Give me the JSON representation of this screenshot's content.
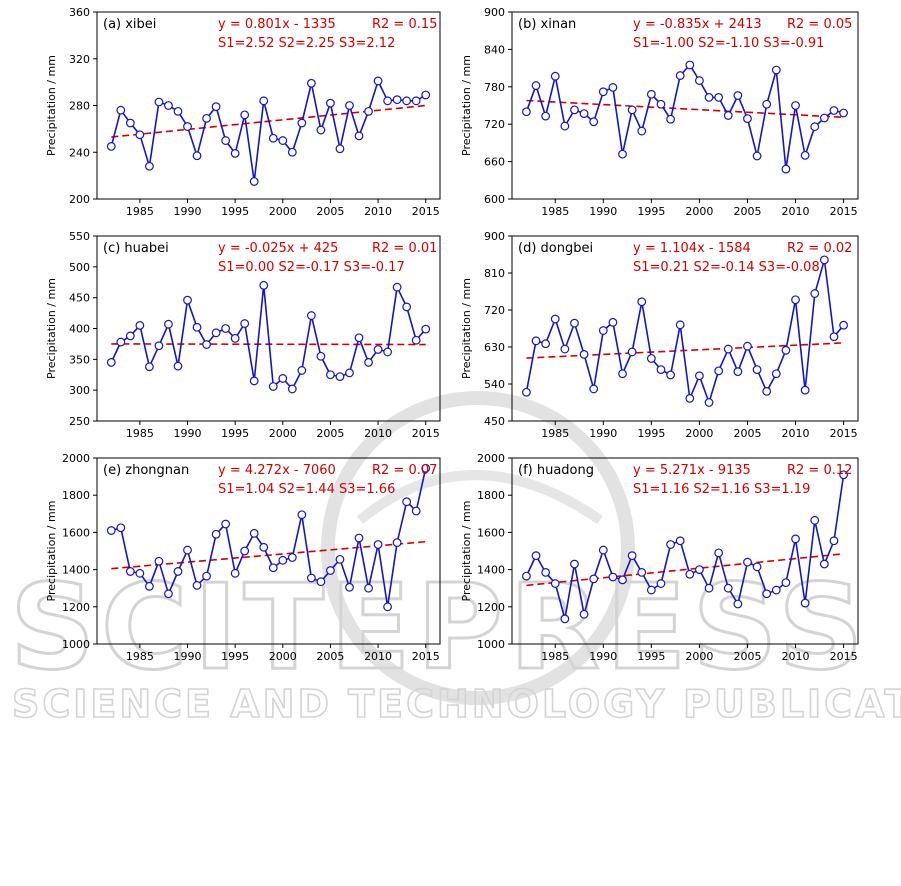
{
  "chart_data": [
    {
      "type": "line",
      "title": "(a) xibei",
      "equation": "y = 0.801x - 1335",
      "r2": "R2 = 0.15",
      "stats": "S1=2.52  S2=2.25  S3=2.12",
      "ylabel": "Precipitation / mm",
      "ylim": [
        200,
        360
      ],
      "yticks": [
        200,
        240,
        280,
        320,
        360
      ],
      "xlim": [
        1980.5,
        2016.5
      ],
      "xticks": [
        1985,
        1990,
        1995,
        2000,
        2005,
        2010,
        2015
      ],
      "years": [
        1982,
        1983,
        1984,
        1985,
        1986,
        1987,
        1988,
        1989,
        1990,
        1991,
        1992,
        1993,
        1994,
        1995,
        1996,
        1997,
        1998,
        1999,
        2000,
        2001,
        2002,
        2003,
        2004,
        2005,
        2006,
        2007,
        2008,
        2009,
        2010,
        2011,
        2012,
        2013,
        2014,
        2015
      ],
      "values": [
        245,
        276,
        265,
        255,
        228,
        283,
        280,
        275,
        262,
        237,
        269,
        279,
        250,
        239,
        272,
        215,
        284,
        252,
        250,
        240,
        265,
        299,
        259,
        282,
        243,
        280,
        254,
        275,
        301,
        284,
        285,
        284,
        284,
        289
      ],
      "trend": [
        253,
        280
      ]
    },
    {
      "type": "line",
      "title": "(b) xinan",
      "equation": "y = -0.835x + 2413",
      "r2": "R2 = 0.05",
      "stats": "S1=-1.00  S2=-1.10  S3=-0.91",
      "ylabel": "Precipitation / mm",
      "ylim": [
        600,
        900
      ],
      "yticks": [
        600,
        660,
        720,
        780,
        840,
        900
      ],
      "xlim": [
        1980.5,
        2016.5
      ],
      "xticks": [
        1985,
        1990,
        1995,
        2000,
        2005,
        2010,
        2015
      ],
      "years": [
        1982,
        1983,
        1984,
        1985,
        1986,
        1987,
        1988,
        1989,
        1990,
        1991,
        1992,
        1993,
        1994,
        1995,
        1996,
        1997,
        1998,
        1999,
        2000,
        2001,
        2002,
        2003,
        2004,
        2005,
        2006,
        2007,
        2008,
        2009,
        2010,
        2011,
        2012,
        2013,
        2014,
        2015
      ],
      "values": [
        740,
        782,
        733,
        797,
        717,
        743,
        737,
        724,
        772,
        779,
        672,
        743,
        709,
        768,
        752,
        728,
        798,
        815,
        790,
        763,
        763,
        734,
        766,
        729,
        669,
        752,
        807,
        648,
        750,
        670,
        716,
        730,
        742,
        738
      ],
      "trend": [
        758,
        731
      ]
    },
    {
      "type": "line",
      "title": "(c) huabei",
      "equation": "y = -0.025x + 425",
      "r2": "R2 = 0.01",
      "stats": "S1=0.00  S2=-0.17  S3=-0.17",
      "ylabel": "Precipitation / mm",
      "ylim": [
        250,
        550
      ],
      "yticks": [
        250,
        300,
        350,
        400,
        450,
        500,
        550
      ],
      "xlim": [
        1980.5,
        2016.5
      ],
      "xticks": [
        1985,
        1990,
        1995,
        2000,
        2005,
        2010,
        2015
      ],
      "years": [
        1982,
        1983,
        1984,
        1985,
        1986,
        1987,
        1988,
        1989,
        1990,
        1991,
        1992,
        1993,
        1994,
        1995,
        1996,
        1997,
        1998,
        1999,
        2000,
        2001,
        2002,
        2003,
        2004,
        2005,
        2006,
        2007,
        2008,
        2009,
        2010,
        2011,
        2012,
        2013,
        2014,
        2015
      ],
      "values": [
        345,
        378,
        388,
        405,
        338,
        372,
        407,
        339,
        446,
        402,
        374,
        393,
        400,
        384,
        408,
        315,
        470,
        306,
        319,
        302,
        332,
        421,
        355,
        325,
        322,
        328,
        385,
        345,
        366,
        362,
        467,
        435,
        381,
        399
      ],
      "trend": [
        375,
        374
      ]
    },
    {
      "type": "line",
      "title": "(d) dongbei",
      "equation": "y = 1.104x - 1584",
      "r2": "R2 = 0.02",
      "stats": "S1=0.21  S2=-0.14  S3=-0.08",
      "ylabel": "Precipitation / mm",
      "ylim": [
        450,
        900
      ],
      "yticks": [
        450,
        540,
        630,
        720,
        810,
        900
      ],
      "xlim": [
        1980.5,
        2016.5
      ],
      "xticks": [
        1985,
        1990,
        1995,
        2000,
        2005,
        2010,
        2015
      ],
      "years": [
        1982,
        1983,
        1984,
        1985,
        1986,
        1987,
        1988,
        1989,
        1990,
        1991,
        1992,
        1993,
        1994,
        1995,
        1996,
        1997,
        1998,
        1999,
        2000,
        2001,
        2002,
        2003,
        2004,
        2005,
        2006,
        2007,
        2008,
        2009,
        2010,
        2011,
        2012,
        2013,
        2014,
        2015
      ],
      "values": [
        520,
        645,
        638,
        698,
        625,
        688,
        612,
        528,
        670,
        690,
        565,
        618,
        740,
        602,
        575,
        562,
        684,
        505,
        560,
        495,
        572,
        625,
        570,
        632,
        575,
        522,
        565,
        622,
        745,
        525,
        760,
        842,
        655,
        683
      ],
      "trend": [
        603,
        640
      ]
    },
    {
      "type": "line",
      "title": "(e) zhongnan",
      "equation": "y = 4.272x - 7060",
      "r2": "R2 = 0.07",
      "stats": "S1=1.04  S2=1.44  S3=1.66",
      "ylabel": "Precipitation / mm",
      "ylim": [
        1000,
        2000
      ],
      "yticks": [
        1000,
        1200,
        1400,
        1600,
        1800,
        2000
      ],
      "xlim": [
        1980.5,
        2016.5
      ],
      "xticks": [
        1985,
        1990,
        1995,
        2000,
        2005,
        2010,
        2015
      ],
      "years": [
        1982,
        1983,
        1984,
        1985,
        1986,
        1987,
        1988,
        1989,
        1990,
        1991,
        1992,
        1993,
        1994,
        1995,
        1996,
        1997,
        1998,
        1999,
        2000,
        2001,
        2002,
        2003,
        2004,
        2005,
        2006,
        2007,
        2008,
        2009,
        2010,
        2011,
        2012,
        2013,
        2014,
        2015
      ],
      "values": [
        1610,
        1625,
        1390,
        1380,
        1310,
        1445,
        1270,
        1390,
        1505,
        1315,
        1365,
        1590,
        1645,
        1380,
        1500,
        1595,
        1520,
        1410,
        1450,
        1465,
        1695,
        1355,
        1335,
        1395,
        1455,
        1305,
        1570,
        1300,
        1535,
        1200,
        1545,
        1765,
        1715,
        1945
      ],
      "trend": [
        1405,
        1550
      ]
    },
    {
      "type": "line",
      "title": "(f) huadong",
      "equation": "y = 5.271x - 9135",
      "r2": "R2 = 0.12",
      "stats": "S1=1.16  S2=1.16  S3=1.19",
      "ylabel": "Precipitation / mm",
      "ylim": [
        1000,
        2000
      ],
      "yticks": [
        1000,
        1200,
        1400,
        1600,
        1800,
        2000
      ],
      "xlim": [
        1980.5,
        2016.5
      ],
      "xticks": [
        1985,
        1990,
        1995,
        2000,
        2005,
        2010,
        2015
      ],
      "years": [
        1982,
        1983,
        1984,
        1985,
        1986,
        1987,
        1988,
        1989,
        1990,
        1991,
        1992,
        1993,
        1994,
        1995,
        1996,
        1997,
        1998,
        1999,
        2000,
        2001,
        2002,
        2003,
        2004,
        2005,
        2006,
        2007,
        2008,
        2009,
        2010,
        2011,
        2012,
        2013,
        2014,
        2015
      ],
      "values": [
        1365,
        1475,
        1385,
        1325,
        1135,
        1430,
        1160,
        1350,
        1505,
        1360,
        1345,
        1475,
        1385,
        1290,
        1325,
        1535,
        1555,
        1375,
        1400,
        1300,
        1490,
        1300,
        1215,
        1440,
        1415,
        1270,
        1290,
        1330,
        1565,
        1220,
        1665,
        1430,
        1555,
        1910
      ],
      "trend": [
        1315,
        1485
      ]
    }
  ],
  "colors": {
    "series": "#1414c8",
    "trend": "#d40000",
    "annotation": "#d40000",
    "axis": "#000000",
    "watermark": "#d4d4d4"
  },
  "watermark": {
    "title": "SCITEPRESS",
    "subtitle": "SCIENCE AND TECHNOLOGY PUBLICATIONS"
  }
}
